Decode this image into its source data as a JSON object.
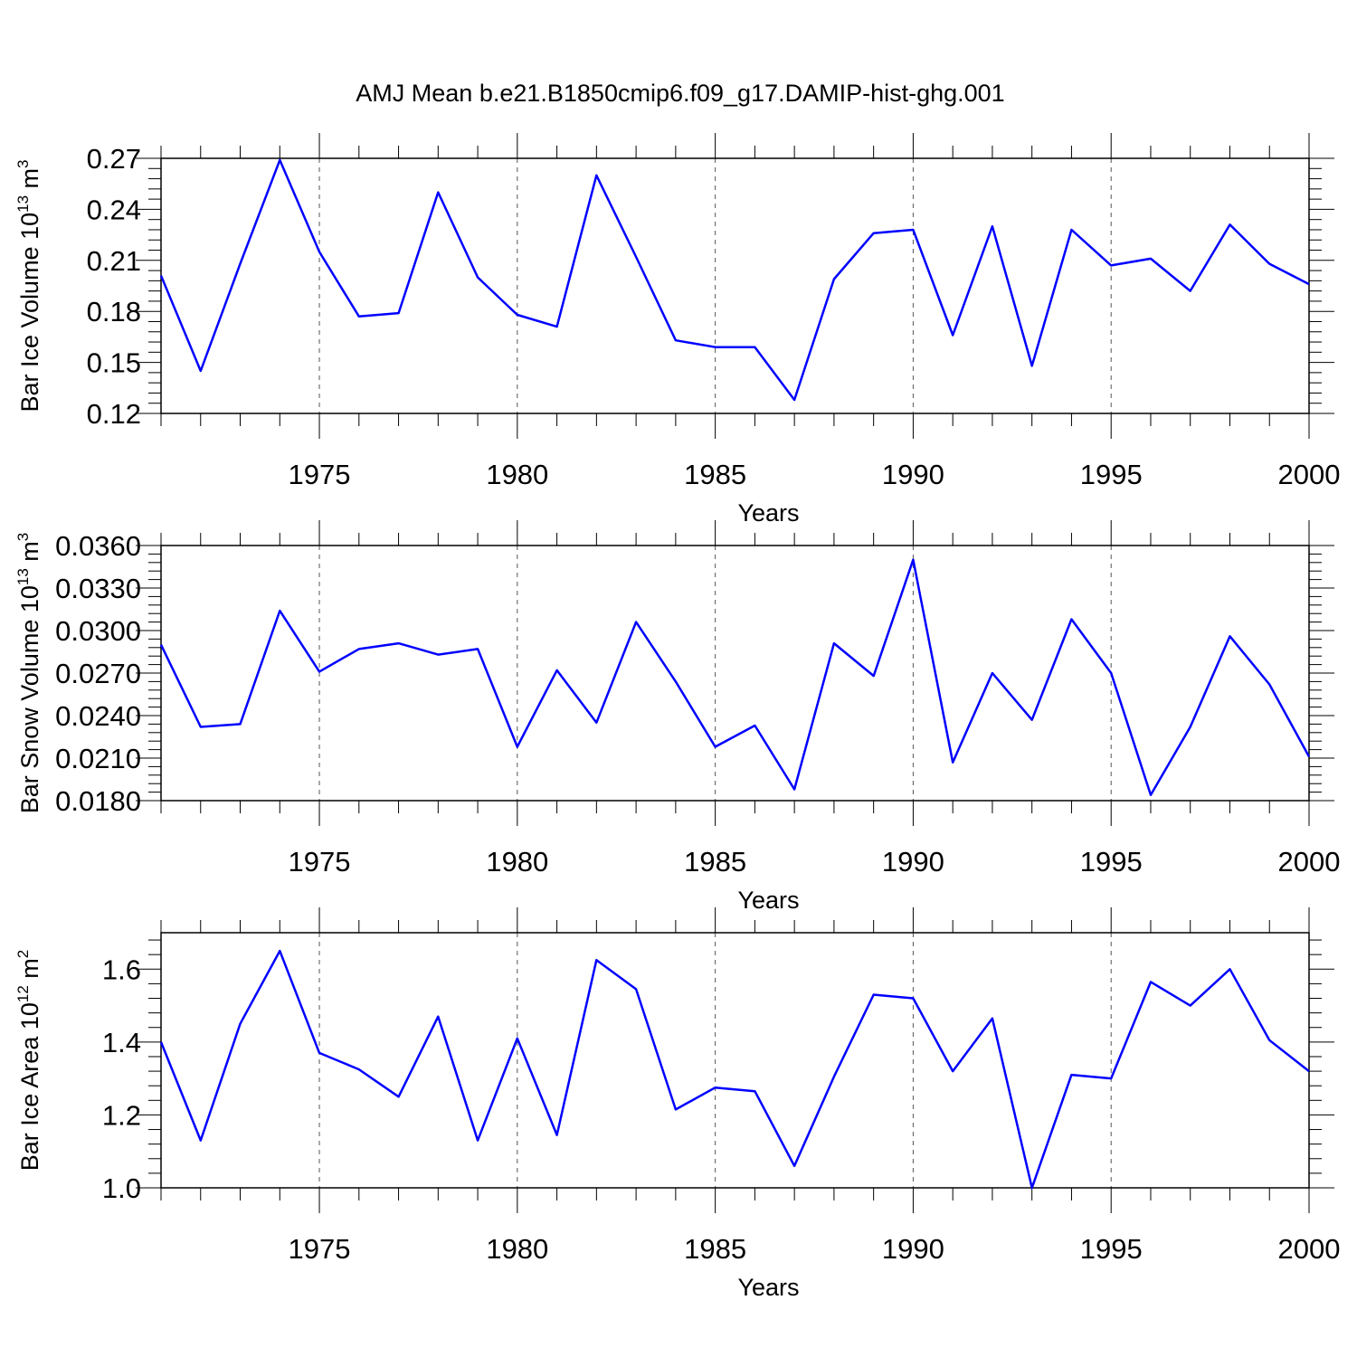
{
  "title": "AMJ Mean b.e21.B1850cmip6.f09_g17.DAMIP-hist-ghg.001",
  "colors": {
    "line": "#0000ff",
    "axis": "#000000",
    "grid": "#555555"
  },
  "chart_data": [
    {
      "type": "line",
      "title": "AMJ Mean b.e21.B1850cmip6.f09_g17.DAMIP-hist-ghg.001",
      "xlabel": "Years",
      "ylabel": {
        "base": "Bar Ice Volume 10",
        "exponent": "13",
        "unit": " m",
        "unit_exponent": "3"
      },
      "xlim": [
        1971,
        2000
      ],
      "ylim": [
        0.12,
        0.27
      ],
      "xticks": [
        1975,
        1980,
        1985,
        1990,
        1995,
        2000
      ],
      "xtick_labels": [
        "1975",
        "1980",
        "1985",
        "1990",
        "1995",
        "2000"
      ],
      "yticks": [
        0.12,
        0.15,
        0.18,
        0.21,
        0.24,
        0.27
      ],
      "ytick_labels": [
        "0.12",
        "0.15",
        "0.18",
        "0.21",
        "0.24",
        "0.27"
      ],
      "grid_x": true,
      "series": [
        {
          "name": "Bar Ice Volume",
          "x": [
            1971,
            1972,
            1973,
            1974,
            1975,
            1976,
            1977,
            1978,
            1979,
            1980,
            1981,
            1982,
            1983,
            1984,
            1985,
            1986,
            1987,
            1988,
            1989,
            1990,
            1991,
            1992,
            1993,
            1994,
            1995,
            1996,
            1997,
            1998,
            1999,
            2000
          ],
          "values": [
            0.201,
            0.145,
            0.208,
            0.269,
            0.215,
            0.177,
            0.179,
            0.25,
            0.2,
            0.178,
            0.171,
            0.26,
            0.212,
            0.163,
            0.159,
            0.159,
            0.128,
            0.199,
            0.226,
            0.228,
            0.166,
            0.23,
            0.148,
            0.228,
            0.207,
            0.211,
            0.192,
            0.231,
            0.208,
            0.196
          ]
        }
      ]
    },
    {
      "type": "line",
      "xlabel": "Years",
      "ylabel": {
        "base": "Bar Snow Volume 10",
        "exponent": "13",
        "unit": " m",
        "unit_exponent": "3"
      },
      "xlim": [
        1971,
        2000
      ],
      "ylim": [
        0.018,
        0.036
      ],
      "xticks": [
        1975,
        1980,
        1985,
        1990,
        1995,
        2000
      ],
      "xtick_labels": [
        "1975",
        "1980",
        "1985",
        "1990",
        "1995",
        "2000"
      ],
      "yticks": [
        0.018,
        0.021,
        0.024,
        0.027,
        0.03,
        0.033,
        0.036
      ],
      "ytick_labels": [
        "0.0180",
        "0.0210",
        "0.0240",
        "0.0270",
        "0.0300",
        "0.0330",
        "0.0360"
      ],
      "grid_x": true,
      "series": [
        {
          "name": "Bar Snow Volume",
          "x": [
            1971,
            1972,
            1973,
            1974,
            1975,
            1976,
            1977,
            1978,
            1979,
            1980,
            1981,
            1982,
            1983,
            1984,
            1985,
            1986,
            1987,
            1988,
            1989,
            1990,
            1991,
            1992,
            1993,
            1994,
            1995,
            1996,
            1997,
            1998,
            1999,
            2000
          ],
          "values": [
            0.029,
            0.0232,
            0.0234,
            0.0314,
            0.0271,
            0.0287,
            0.0291,
            0.0283,
            0.0287,
            0.0218,
            0.0272,
            0.0235,
            0.0306,
            0.0264,
            0.0218,
            0.0233,
            0.0188,
            0.0291,
            0.0268,
            0.035,
            0.0207,
            0.027,
            0.0237,
            0.0308,
            0.027,
            0.0184,
            0.0232,
            0.0296,
            0.0262,
            0.0211
          ]
        }
      ]
    },
    {
      "type": "line",
      "xlabel": "Years",
      "ylabel": {
        "base": "Bar Ice Area 10",
        "exponent": "12",
        "unit": " m",
        "unit_exponent": "2"
      },
      "xlim": [
        1971,
        2000
      ],
      "ylim": [
        1.0,
        1.7
      ],
      "xticks": [
        1975,
        1980,
        1985,
        1990,
        1995,
        2000
      ],
      "xtick_labels": [
        "1975",
        "1980",
        "1985",
        "1990",
        "1995",
        "2000"
      ],
      "yticks": [
        1.0,
        1.2,
        1.4,
        1.6
      ],
      "ytick_labels": [
        "1.0",
        "1.2",
        "1.4",
        "1.6"
      ],
      "grid_x": true,
      "series": [
        {
          "name": "Bar Ice Area",
          "x": [
            1971,
            1972,
            1973,
            1974,
            1975,
            1976,
            1977,
            1978,
            1979,
            1980,
            1981,
            1982,
            1983,
            1984,
            1985,
            1986,
            1987,
            1988,
            1989,
            1990,
            1991,
            1992,
            1993,
            1994,
            1995,
            1996,
            1997,
            1998,
            1999,
            2000
          ],
          "values": [
            1.4,
            1.13,
            1.45,
            1.65,
            1.37,
            1.325,
            1.25,
            1.47,
            1.13,
            1.41,
            1.145,
            1.625,
            1.545,
            1.215,
            1.275,
            1.265,
            1.06,
            1.305,
            1.53,
            1.52,
            1.32,
            1.465,
            1.0,
            1.31,
            1.3,
            1.565,
            1.5,
            1.6,
            1.405,
            1.32
          ]
        }
      ]
    }
  ]
}
